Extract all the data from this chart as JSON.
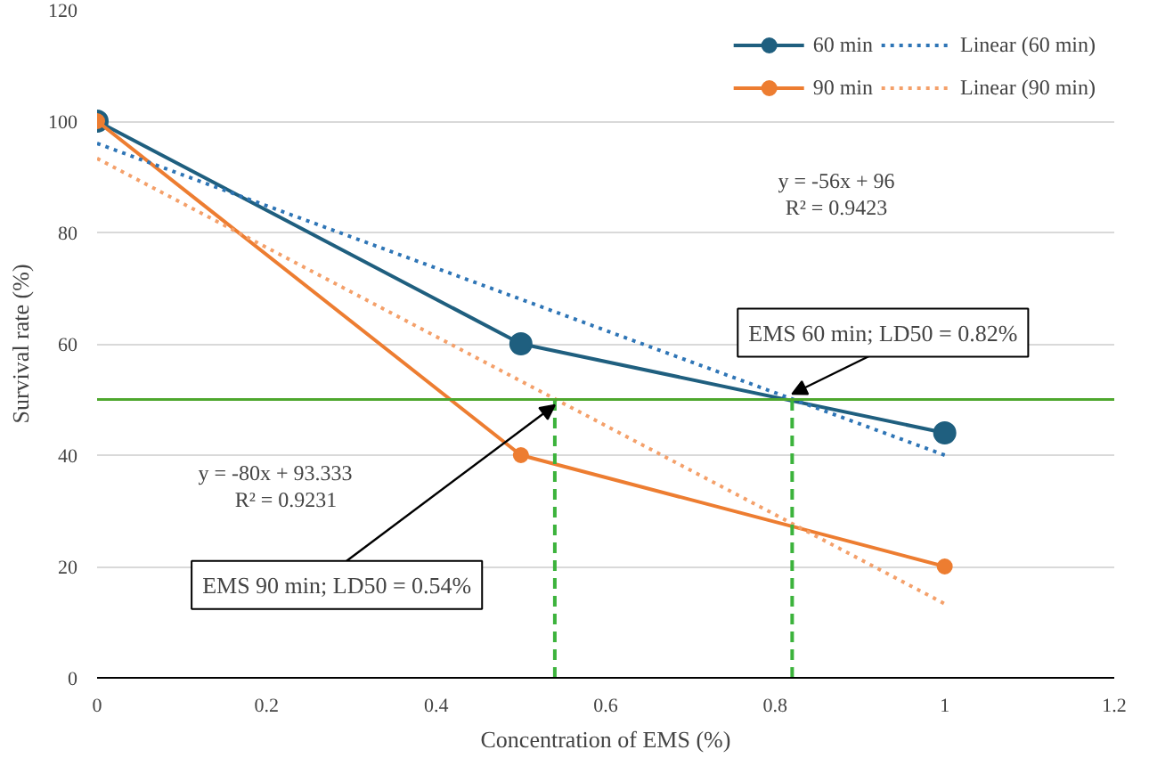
{
  "chart_data": {
    "type": "line",
    "xlabel": "Concentration of EMS (%)",
    "ylabel": "Survival rate (%)",
    "x": [
      0,
      0.5,
      1
    ],
    "series": [
      {
        "name": "60 min",
        "color": "#1f5f7f",
        "values": [
          100,
          60,
          44
        ],
        "marker": "circle"
      },
      {
        "name": "90 min",
        "color": "#ed7d31",
        "values": [
          100,
          40,
          20
        ],
        "marker": "circle"
      },
      {
        "name": "Linear (60 min)",
        "color": "#2e75b6",
        "x": [
          0,
          1
        ],
        "values": [
          96,
          40
        ],
        "line_style": "dotted",
        "marker": "none"
      },
      {
        "name": "Linear (90 min)",
        "color": "#f4a06a",
        "x": [
          0,
          1
        ],
        "values": [
          93.3,
          13.3
        ],
        "line_style": "dotted",
        "marker": "none"
      },
      {
        "color": "#3cb33c",
        "x": [
          0.54,
          0.54
        ],
        "values": [
          0,
          50
        ],
        "line_style": "dashed",
        "marker": "none"
      },
      {
        "color": "#3cb33c",
        "x": [
          0.82,
          0.82
        ],
        "values": [
          0,
          50
        ],
        "line_style": "dashed",
        "marker": "none"
      }
    ],
    "ref_lines": [
      {
        "axis": "y",
        "value": 50,
        "color": "#4ea72e",
        "line_style": "solid"
      }
    ],
    "annotations": [
      "y = -56x + 96",
      "R² = 0.9423",
      "y = -80x + 93.333",
      "R² = 0.9231",
      {
        "text": "EMS 60 min; LD50 = 0.82%",
        "x": 0.82,
        "y": 50
      },
      {
        "text": "EMS 90 min; LD50 = 0.54%",
        "x": 0.54,
        "y": 50
      }
    ],
    "xlim": [
      0,
      1.2
    ],
    "xticks": [
      0,
      0.2,
      0.4,
      0.6,
      0.8,
      1,
      1.2
    ],
    "ylim": [
      0,
      120
    ],
    "yticks": [
      0,
      20,
      40,
      60,
      80,
      100,
      120
    ],
    "grid": "y",
    "legend": "top right"
  }
}
